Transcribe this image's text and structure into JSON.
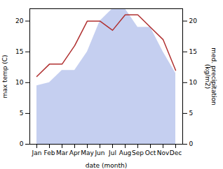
{
  "chart_data": {
    "type": "line",
    "xlabel": "date (month)",
    "ylabel": "max temp (C)",
    "y2label": "med. precipitation\n(kg/m2)",
    "categories": [
      "Jan",
      "Feb",
      "Mar",
      "Apr",
      "May",
      "Jun",
      "Jul",
      "Aug",
      "Sep",
      "Oct",
      "Nov",
      "Dec"
    ],
    "series": [
      {
        "type": "area",
        "axis": "y2",
        "color": "#c5cff0",
        "values": [
          9.5,
          10,
          12,
          12,
          15,
          20,
          22,
          22,
          19,
          19,
          15,
          11.5
        ]
      },
      {
        "type": "line",
        "color": "#b03030",
        "values": [
          11,
          13,
          13,
          16,
          20,
          20,
          18.5,
          21,
          21,
          19,
          17,
          12
        ]
      }
    ],
    "ylim": [
      0,
      22
    ],
    "yticks": [
      0,
      5,
      10,
      15,
      20
    ],
    "y2lim": [
      0,
      22
    ],
    "y2ticks": [
      0,
      5,
      10,
      15,
      20
    ],
    "grid": false
  }
}
